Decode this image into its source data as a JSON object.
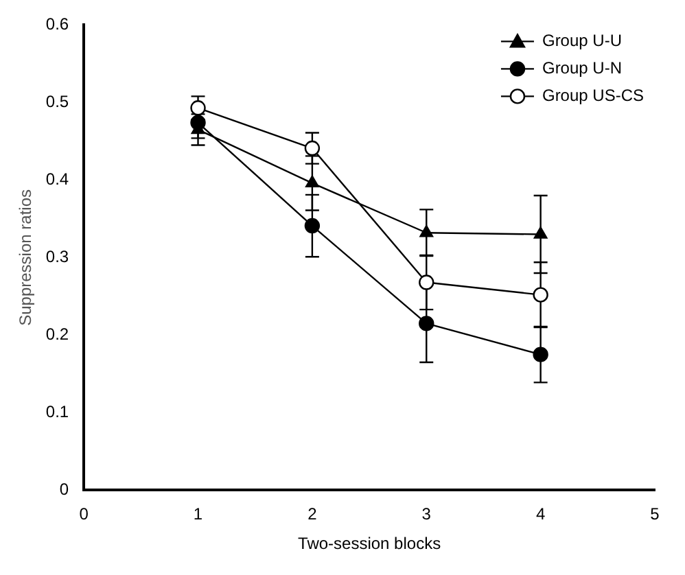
{
  "chart_data": {
    "type": "line",
    "xlabel": "Two-session blocks",
    "ylabel": "Suppression ratios",
    "x": [
      1,
      2,
      3,
      4
    ],
    "series": [
      {
        "name": "Group U-U",
        "color": "#000000",
        "marker": "triangle",
        "values": [
          0.465,
          0.396,
          0.332,
          0.33
        ],
        "errors": [
          0.02,
          0.035,
          0.03,
          0.05
        ]
      },
      {
        "name": "Group U-N",
        "color": "#000000",
        "marker": "circle",
        "values": [
          0.474,
          0.341,
          0.215,
          0.175
        ],
        "errors": [
          0.02,
          0.04,
          0.05,
          0.036
        ]
      },
      {
        "name": "Group US-CS",
        "color": "#000000",
        "marker": "circle",
        "values": [
          0.493,
          0.441,
          0.268,
          0.252
        ],
        "errors": [
          0.015,
          0.02,
          0.035,
          0.042
        ]
      }
    ],
    "xlim": [
      0,
      5
    ],
    "xticks": [
      0,
      1,
      2,
      3,
      4,
      5
    ],
    "ylim": [
      0,
      0.6
    ],
    "yticks": [
      0,
      0.1,
      0.2,
      0.3,
      0.4,
      0.5,
      0.6
    ],
    "grid": false,
    "legend": "top right"
  }
}
